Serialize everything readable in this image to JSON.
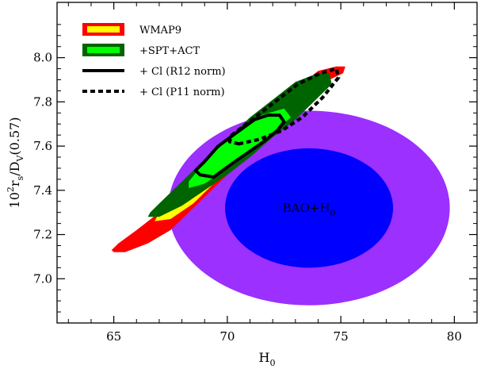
{
  "chart_data": {
    "type": "contour",
    "xlabel": "H",
    "xlabel_sub": "0",
    "ylabel_parts": [
      "10",
      "2",
      "r",
      "s",
      "/D",
      "V",
      "(0.57)"
    ],
    "xlim": [
      62.5,
      81.0
    ],
    "ylim": [
      6.8,
      8.25
    ],
    "xticks": [
      65,
      70,
      75,
      80
    ],
    "yticks": [
      7.0,
      7.2,
      7.4,
      7.6,
      7.8,
      8.0
    ],
    "xtick_labels": [
      "65",
      "70",
      "75",
      "80"
    ],
    "ytick_labels": [
      "7.0",
      "7.2",
      "7.4",
      "7.6",
      "7.8",
      "8.0"
    ],
    "annotation": {
      "text": "BAO+H",
      "sub": "0",
      "x": 73.6,
      "y": 7.32
    },
    "legend": {
      "position": "top-left",
      "entries": [
        {
          "label": "WMAP9",
          "style": "box",
          "outer": "#ff0000",
          "inner": "#ffff00"
        },
        {
          "label": "+SPT+ACT",
          "style": "box",
          "outer": "#006400",
          "inner": "#00ff00"
        },
        {
          "label": "+ Cl (R12 norm)",
          "style": "solid",
          "color": "#000000"
        },
        {
          "label": "+ Cl (P11 norm)",
          "style": "dotted",
          "color": "#000000"
        }
      ]
    },
    "regions": [
      {
        "name": "bao-2sigma",
        "color": "#9b30ff",
        "center": [
          73.6,
          7.32
        ],
        "radii": [
          6.2,
          0.44
        ],
        "angle_deg": 0
      },
      {
        "name": "bao-1sigma",
        "color": "#0000ff",
        "center": [
          73.6,
          7.32
        ],
        "radii": [
          3.7,
          0.27
        ],
        "angle_deg": 0
      },
      {
        "name": "wmap9-2sigma",
        "color": "#ff0000",
        "points": [
          [
            65.0,
            7.12
          ],
          [
            65.5,
            7.12
          ],
          [
            66.5,
            7.16
          ],
          [
            67.5,
            7.22
          ],
          [
            68.5,
            7.32
          ],
          [
            69.5,
            7.42
          ],
          [
            70.5,
            7.52
          ],
          [
            71.5,
            7.62
          ],
          [
            72.5,
            7.72
          ],
          [
            73.5,
            7.82
          ],
          [
            74.5,
            7.9
          ],
          [
            75.1,
            7.93
          ],
          [
            75.2,
            7.96
          ],
          [
            74.8,
            7.96
          ],
          [
            74.0,
            7.94
          ],
          [
            73.0,
            7.86
          ],
          [
            72.0,
            7.78
          ],
          [
            71.0,
            7.69
          ],
          [
            70.0,
            7.59
          ],
          [
            69.0,
            7.49
          ],
          [
            68.0,
            7.39
          ],
          [
            67.0,
            7.3
          ],
          [
            66.0,
            7.22
          ],
          [
            65.2,
            7.16
          ],
          [
            64.9,
            7.13
          ]
        ]
      },
      {
        "name": "wmap9-1sigma",
        "color": "#ffff00",
        "points": [
          [
            66.8,
            7.26
          ],
          [
            67.5,
            7.27
          ],
          [
            68.5,
            7.34
          ],
          [
            69.5,
            7.44
          ],
          [
            70.5,
            7.55
          ],
          [
            71.5,
            7.65
          ],
          [
            72.5,
            7.74
          ],
          [
            73.3,
            7.82
          ],
          [
            73.0,
            7.84
          ],
          [
            72.0,
            7.77
          ],
          [
            71.0,
            7.67
          ],
          [
            70.0,
            7.56
          ],
          [
            69.0,
            7.45
          ],
          [
            68.0,
            7.36
          ],
          [
            67.0,
            7.3
          ]
        ]
      },
      {
        "name": "spt-act-2sigma",
        "color": "#006400",
        "points": [
          [
            66.5,
            7.28
          ],
          [
            67.0,
            7.28
          ],
          [
            68.0,
            7.33
          ],
          [
            69.0,
            7.4
          ],
          [
            70.0,
            7.47
          ],
          [
            71.0,
            7.55
          ],
          [
            72.0,
            7.64
          ],
          [
            73.0,
            7.72
          ],
          [
            74.0,
            7.82
          ],
          [
            74.6,
            7.88
          ],
          [
            74.5,
            7.93
          ],
          [
            74.0,
            7.93
          ],
          [
            73.0,
            7.89
          ],
          [
            72.0,
            7.81
          ],
          [
            71.0,
            7.73
          ],
          [
            70.0,
            7.63
          ],
          [
            69.0,
            7.54
          ],
          [
            68.0,
            7.44
          ],
          [
            67.0,
            7.34
          ],
          [
            66.6,
            7.3
          ]
        ]
      },
      {
        "name": "spt-act-1sigma",
        "color": "#00ff00",
        "points": [
          [
            68.3,
            7.41
          ],
          [
            69.0,
            7.43
          ],
          [
            70.0,
            7.5
          ],
          [
            71.0,
            7.58
          ],
          [
            72.0,
            7.66
          ],
          [
            72.8,
            7.73
          ],
          [
            72.5,
            7.77
          ],
          [
            71.5,
            7.74
          ],
          [
            70.5,
            7.67
          ],
          [
            69.5,
            7.58
          ],
          [
            68.7,
            7.49
          ],
          [
            68.3,
            7.44
          ]
        ]
      }
    ],
    "contours": [
      {
        "name": "cl-r12-norm",
        "style": "solid",
        "color": "#000000",
        "points": [
          [
            68.8,
            7.47
          ],
          [
            69.4,
            7.46
          ],
          [
            70.2,
            7.52
          ],
          [
            70.9,
            7.57
          ],
          [
            71.6,
            7.62
          ],
          [
            72.2,
            7.67
          ],
          [
            72.5,
            7.71
          ],
          [
            72.3,
            7.74
          ],
          [
            71.8,
            7.74
          ],
          [
            71.2,
            7.72
          ],
          [
            70.4,
            7.66
          ],
          [
            69.6,
            7.6
          ],
          [
            69.0,
            7.53
          ],
          [
            68.6,
            7.49
          ]
        ]
      },
      {
        "name": "cl-p11-norm",
        "style": "dotted",
        "color": "#000000",
        "points": [
          [
            70.5,
            7.61
          ],
          [
            71.4,
            7.63
          ],
          [
            72.4,
            7.67
          ],
          [
            73.3,
            7.73
          ],
          [
            74.2,
            7.82
          ],
          [
            74.9,
            7.91
          ],
          [
            74.8,
            7.95
          ],
          [
            74.1,
            7.93
          ],
          [
            73.1,
            7.88
          ],
          [
            72.1,
            7.8
          ],
          [
            71.1,
            7.72
          ],
          [
            70.2,
            7.65
          ],
          [
            70.1,
            7.62
          ]
        ]
      }
    ]
  }
}
